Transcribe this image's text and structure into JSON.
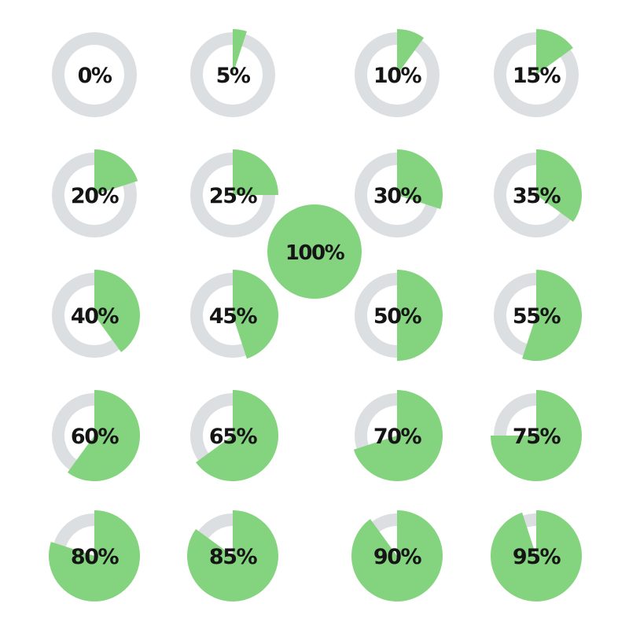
{
  "colors": {
    "background": "#ffffff",
    "ring": "#dcdfe1",
    "progress": "#84d47f",
    "label": "#151515"
  },
  "chart_data": {
    "type": "pie",
    "title": "",
    "charts": [
      {
        "label": "0%",
        "value": 0
      },
      {
        "label": "5%",
        "value": 5
      },
      {
        "label": "10%",
        "value": 10
      },
      {
        "label": "15%",
        "value": 15
      },
      {
        "label": "20%",
        "value": 20
      },
      {
        "label": "25%",
        "value": 25
      },
      {
        "label": "30%",
        "value": 30
      },
      {
        "label": "35%",
        "value": 35
      },
      {
        "label": "40%",
        "value": 40
      },
      {
        "label": "45%",
        "value": 45
      },
      {
        "label": "50%",
        "value": 50
      },
      {
        "label": "55%",
        "value": 55
      },
      {
        "label": "60%",
        "value": 60
      },
      {
        "label": "65%",
        "value": 65
      },
      {
        "label": "70%",
        "value": 70
      },
      {
        "label": "75%",
        "value": 75
      },
      {
        "label": "80%",
        "value": 80
      },
      {
        "label": "85%",
        "value": 85
      },
      {
        "label": "90%",
        "value": 90
      },
      {
        "label": "95%",
        "value": 95
      },
      {
        "label": "100%",
        "value": 100
      }
    ]
  }
}
